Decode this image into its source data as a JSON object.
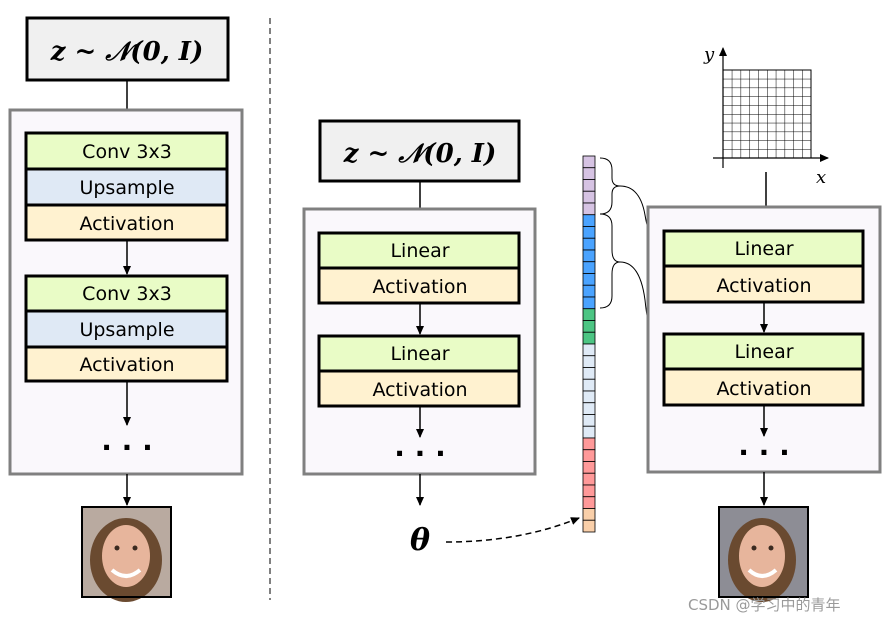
{
  "left": {
    "input_label": "z ~ 𝒩(0, I)",
    "blocks": [
      {
        "conv": "Conv 3x3",
        "upsample": "Upsample",
        "activation": "Activation"
      },
      {
        "conv": "Conv 3x3",
        "upsample": "Upsample",
        "activation": "Activation"
      }
    ],
    "ellipsis": "· · ·"
  },
  "middle": {
    "input_label": "z ~ 𝒩(0, I)",
    "blocks": [
      {
        "linear": "Linear",
        "activation": "Activation"
      },
      {
        "linear": "Linear",
        "activation": "Activation"
      }
    ],
    "ellipsis": "· · ·",
    "output_label": "θ"
  },
  "parameter_vector": {
    "segments": [
      {
        "color": "#d6c3e3",
        "count": 5
      },
      {
        "color": "#4aa3ff",
        "count": 8
      },
      {
        "color": "#4cc583",
        "count": 3
      },
      {
        "color": "#dfeaf6",
        "count": 8
      },
      {
        "color": "#ff9999",
        "count": 6
      },
      {
        "color": "#f9cfa9",
        "count": 2
      }
    ]
  },
  "right": {
    "axis_x": "x",
    "axis_y": "y",
    "blocks": [
      {
        "linear": "Linear",
        "activation": "Activation"
      },
      {
        "linear": "Linear",
        "activation": "Activation"
      }
    ],
    "ellipsis": "· · ·"
  },
  "colors": {
    "conv_linear": "#e9fcc6",
    "upsample": "#dfe9f5",
    "activation": "#fff2d0",
    "container_fill": "#faf8fc",
    "container_stroke": "#808080"
  },
  "watermark": "CSDN @学习中的青年"
}
